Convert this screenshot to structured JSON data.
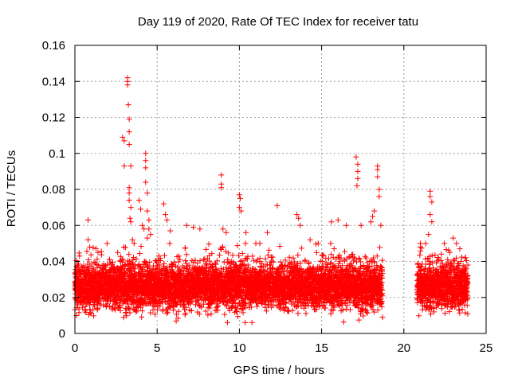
{
  "chart_data": {
    "type": "scatter",
    "title": "Day 119 of 2020, Rate Of TEC Index for receiver tatu",
    "xlabel": "GPS time / hours",
    "ylabel": "ROTI / TECUs",
    "xlim": [
      0,
      25
    ],
    "ylim": [
      0,
      0.16
    ],
    "xticks": [
      "0",
      "5",
      "10",
      "15",
      "20",
      "25"
    ],
    "yticks": [
      "0",
      "0.02",
      "0.04",
      "0.06",
      "0.08",
      "0.1",
      "0.12",
      "0.14",
      "0.16"
    ],
    "grid": true,
    "marker": "+",
    "color": "#ff0000",
    "series": [
      {
        "name": "ROTI",
        "segments": [
          {
            "start": 0.0,
            "end": 18.7,
            "base": 0.026,
            "spread": 0.01
          },
          {
            "start": 20.8,
            "end": 23.9,
            "base": 0.026,
            "spread": 0.01
          }
        ],
        "points": [
          {
            "x": 0.8,
            "y": 0.063
          },
          {
            "x": 0.8,
            "y": 0.052
          },
          {
            "x": 0.9,
            "y": 0.048
          },
          {
            "x": 1.4,
            "y": 0.045
          },
          {
            "x": 2.1,
            "y": 0.041
          },
          {
            "x": 2.6,
            "y": 0.045
          },
          {
            "x": 2.9,
            "y": 0.109
          },
          {
            "x": 3.0,
            "y": 0.107
          },
          {
            "x": 3.0,
            "y": 0.093
          },
          {
            "x": 3.2,
            "y": 0.142
          },
          {
            "x": 3.2,
            "y": 0.14
          },
          {
            "x": 3.2,
            "y": 0.138
          },
          {
            "x": 3.25,
            "y": 0.127
          },
          {
            "x": 3.3,
            "y": 0.119
          },
          {
            "x": 3.3,
            "y": 0.112
          },
          {
            "x": 3.3,
            "y": 0.105
          },
          {
            "x": 3.4,
            "y": 0.093
          },
          {
            "x": 3.3,
            "y": 0.081
          },
          {
            "x": 3.3,
            "y": 0.078
          },
          {
            "x": 3.3,
            "y": 0.074
          },
          {
            "x": 3.4,
            "y": 0.07
          },
          {
            "x": 3.35,
            "y": 0.064
          },
          {
            "x": 3.4,
            "y": 0.062
          },
          {
            "x": 3.5,
            "y": 0.052
          },
          {
            "x": 3.6,
            "y": 0.05
          },
          {
            "x": 3.9,
            "y": 0.074
          },
          {
            "x": 4.0,
            "y": 0.069
          },
          {
            "x": 4.1,
            "y": 0.06
          },
          {
            "x": 4.2,
            "y": 0.058
          },
          {
            "x": 4.3,
            "y": 0.1
          },
          {
            "x": 4.3,
            "y": 0.096
          },
          {
            "x": 4.3,
            "y": 0.092
          },
          {
            "x": 4.3,
            "y": 0.084
          },
          {
            "x": 4.4,
            "y": 0.078
          },
          {
            "x": 4.4,
            "y": 0.068
          },
          {
            "x": 4.5,
            "y": 0.063
          },
          {
            "x": 4.5,
            "y": 0.058
          },
          {
            "x": 4.6,
            "y": 0.055
          },
          {
            "x": 4.4,
            "y": 0.053
          },
          {
            "x": 5.4,
            "y": 0.072
          },
          {
            "x": 5.5,
            "y": 0.066
          },
          {
            "x": 5.6,
            "y": 0.063
          },
          {
            "x": 5.8,
            "y": 0.057
          },
          {
            "x": 6.8,
            "y": 0.06
          },
          {
            "x": 7.2,
            "y": 0.059
          },
          {
            "x": 7.6,
            "y": 0.058
          },
          {
            "x": 8.9,
            "y": 0.088
          },
          {
            "x": 8.9,
            "y": 0.083
          },
          {
            "x": 8.9,
            "y": 0.081
          },
          {
            "x": 9.0,
            "y": 0.058
          },
          {
            "x": 9.2,
            "y": 0.056
          },
          {
            "x": 10.0,
            "y": 0.077
          },
          {
            "x": 10.05,
            "y": 0.075
          },
          {
            "x": 10.0,
            "y": 0.07
          },
          {
            "x": 10.1,
            "y": 0.068
          },
          {
            "x": 10.4,
            "y": 0.056
          },
          {
            "x": 11.7,
            "y": 0.056
          },
          {
            "x": 12.3,
            "y": 0.071
          },
          {
            "x": 13.5,
            "y": 0.066
          },
          {
            "x": 13.6,
            "y": 0.064
          },
          {
            "x": 13.7,
            "y": 0.06
          },
          {
            "x": 14.3,
            "y": 0.052
          },
          {
            "x": 15.6,
            "y": 0.062
          },
          {
            "x": 16.0,
            "y": 0.063
          },
          {
            "x": 16.5,
            "y": 0.06
          },
          {
            "x": 17.1,
            "y": 0.098
          },
          {
            "x": 17.2,
            "y": 0.094
          },
          {
            "x": 17.2,
            "y": 0.09
          },
          {
            "x": 17.2,
            "y": 0.086
          },
          {
            "x": 17.15,
            "y": 0.082
          },
          {
            "x": 17.4,
            "y": 0.06
          },
          {
            "x": 18.0,
            "y": 0.062
          },
          {
            "x": 18.1,
            "y": 0.065
          },
          {
            "x": 18.2,
            "y": 0.068
          },
          {
            "x": 18.4,
            "y": 0.093
          },
          {
            "x": 18.4,
            "y": 0.091
          },
          {
            "x": 18.4,
            "y": 0.087
          },
          {
            "x": 18.5,
            "y": 0.08
          },
          {
            "x": 18.5,
            "y": 0.076
          },
          {
            "x": 18.6,
            "y": 0.06
          },
          {
            "x": 18.7,
            "y": 0.009
          },
          {
            "x": 21.0,
            "y": 0.05
          },
          {
            "x": 21.0,
            "y": 0.048
          },
          {
            "x": 21.6,
            "y": 0.079
          },
          {
            "x": 21.6,
            "y": 0.076
          },
          {
            "x": 21.7,
            "y": 0.073
          },
          {
            "x": 21.6,
            "y": 0.066
          },
          {
            "x": 21.7,
            "y": 0.062
          },
          {
            "x": 21.5,
            "y": 0.055
          },
          {
            "x": 23.0,
            "y": 0.053
          },
          {
            "x": 23.2,
            "y": 0.05
          },
          {
            "x": 23.4,
            "y": 0.047
          },
          {
            "x": 22.8,
            "y": 0.045
          }
        ]
      }
    ]
  }
}
